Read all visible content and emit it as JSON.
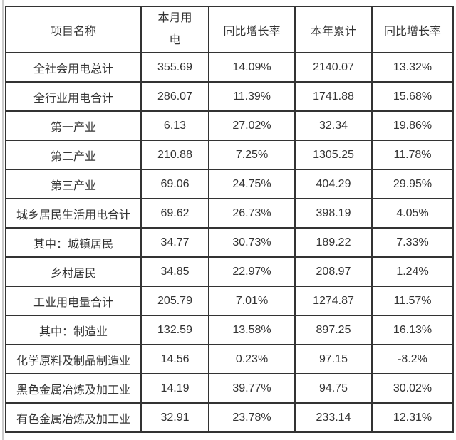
{
  "page": {
    "background_color": "#ffffff",
    "left_rule_color": "#cccccc"
  },
  "table": {
    "border_color": "#333333",
    "text_color": "#333333",
    "columns": [
      "项目名称",
      "本月用电",
      "同比增长率",
      "本年累计",
      "同比增长率"
    ],
    "rows": [
      {
        "name": "全社会用电总计",
        "month_value": "355.69",
        "month_yoy": "14.09%",
        "ytd_value": "2140.07",
        "ytd_yoy": "13.32%"
      },
      {
        "name": "全行业用电合计",
        "month_value": "286.07",
        "month_yoy": "11.39%",
        "ytd_value": "1741.88",
        "ytd_yoy": "15.68%"
      },
      {
        "name": "第一产业",
        "month_value": "6.13",
        "month_yoy": "27.02%",
        "ytd_value": "32.34",
        "ytd_yoy": "19.86%"
      },
      {
        "name": "第二产业",
        "month_value": "210.88",
        "month_yoy": "7.25%",
        "ytd_value": "1305.25",
        "ytd_yoy": "11.78%"
      },
      {
        "name": "第三产业",
        "month_value": "69.06",
        "month_yoy": "24.75%",
        "ytd_value": "404.29",
        "ytd_yoy": "29.95%"
      },
      {
        "name": "城乡居民生活用电合计",
        "month_value": "69.62",
        "month_yoy": "26.73%",
        "ytd_value": "398.19",
        "ytd_yoy": "4.05%"
      },
      {
        "name": "其中：城镇居民",
        "month_value": "34.77",
        "month_yoy": "30.73%",
        "ytd_value": "189.22",
        "ytd_yoy": "7.33%"
      },
      {
        "name": "乡村居民",
        "month_value": "34.85",
        "month_yoy": "22.97%",
        "ytd_value": "208.97",
        "ytd_yoy": "1.24%"
      },
      {
        "name": "工业用电量合计",
        "month_value": "205.79",
        "month_yoy": "7.01%",
        "ytd_value": "1274.87",
        "ytd_yoy": "11.57%"
      },
      {
        "name": "其中：制造业",
        "month_value": "132.59",
        "month_yoy": "13.58%",
        "ytd_value": "897.25",
        "ytd_yoy": "16.13%"
      },
      {
        "name": "化学原料及制品制造业",
        "month_value": "14.56",
        "month_yoy": "0.23%",
        "ytd_value": "97.15",
        "ytd_yoy": "-8.2%"
      },
      {
        "name": "黑色金属冶炼及加工业",
        "month_value": "14.19",
        "month_yoy": "39.77%",
        "ytd_value": "94.75",
        "ytd_yoy": "30.02%"
      },
      {
        "name": "有色金属冶炼及加工业",
        "month_value": "32.91",
        "month_yoy": "23.78%",
        "ytd_value": "233.14",
        "ytd_yoy": "12.31%"
      }
    ]
  }
}
